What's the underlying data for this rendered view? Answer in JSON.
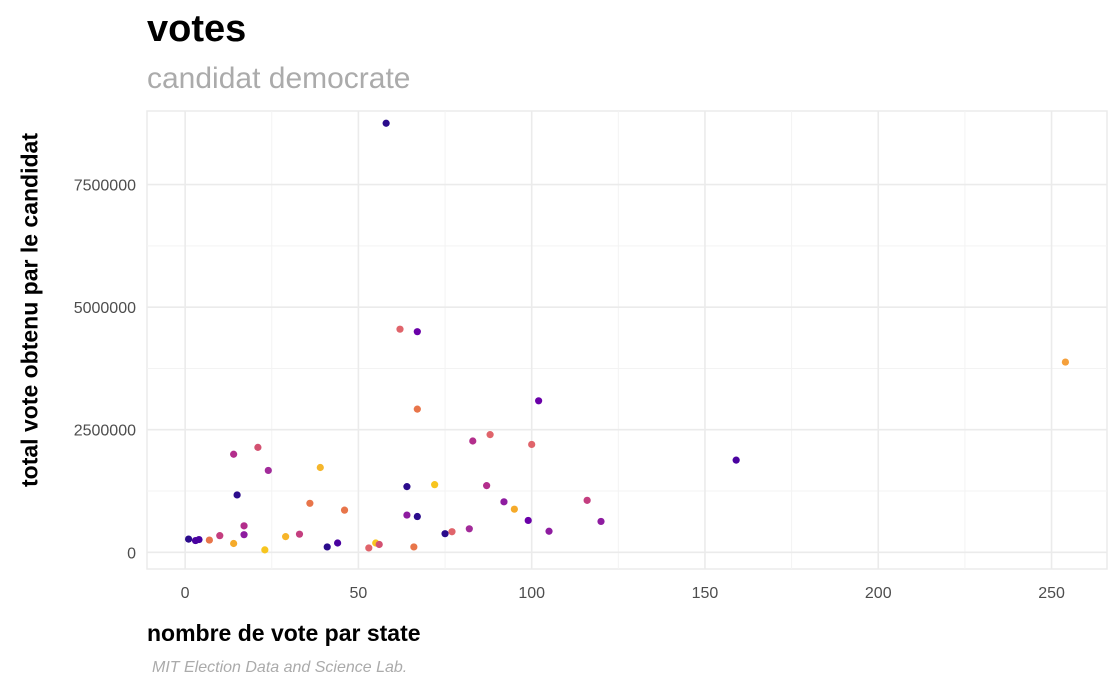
{
  "chart_data": {
    "type": "scatter",
    "title": "votes",
    "subtitle": "candidat democrate",
    "xlabel": "nombre de vote par state",
    "ylabel": "total vote obtenu par le candidat",
    "caption": "MIT Election Data and Science Lab.",
    "xlim": [
      -11,
      266
    ],
    "ylim": [
      -340000,
      9000000
    ],
    "xticks": [
      0,
      50,
      100,
      150,
      200,
      250
    ],
    "yticks": [
      0,
      2500000,
      5000000,
      7500000
    ],
    "grid": true,
    "legend": "none",
    "points": [
      {
        "x": 1,
        "y": 270000,
        "color": "#2b0b8c"
      },
      {
        "x": 3,
        "y": 240000,
        "color": "#4a02a0"
      },
      {
        "x": 4,
        "y": 260000,
        "color": "#4a02a0"
      },
      {
        "x": 7,
        "y": 250000,
        "color": "#e8754a"
      },
      {
        "x": 10,
        "y": 340000,
        "color": "#c43e7f"
      },
      {
        "x": 14,
        "y": 2000000,
        "color": "#b32e8c"
      },
      {
        "x": 14,
        "y": 180000,
        "color": "#f5aa2a"
      },
      {
        "x": 15,
        "y": 1170000,
        "color": "#2b0b8c"
      },
      {
        "x": 17,
        "y": 540000,
        "color": "#b32e8c"
      },
      {
        "x": 17,
        "y": 360000,
        "color": "#8e1ca0"
      },
      {
        "x": 21,
        "y": 2140000,
        "color": "#d35171"
      },
      {
        "x": 23,
        "y": 50000,
        "color": "#f7c51f"
      },
      {
        "x": 24,
        "y": 1670000,
        "color": "#a22b9a"
      },
      {
        "x": 29,
        "y": 320000,
        "color": "#f7b52a"
      },
      {
        "x": 33,
        "y": 370000,
        "color": "#c43e7f"
      },
      {
        "x": 36,
        "y": 1000000,
        "color": "#e8754a"
      },
      {
        "x": 39,
        "y": 1730000,
        "color": "#f5b62c"
      },
      {
        "x": 41,
        "y": 110000,
        "color": "#2b0b8c"
      },
      {
        "x": 44,
        "y": 190000,
        "color": "#4a02a0"
      },
      {
        "x": 46,
        "y": 860000,
        "color": "#e8754a"
      },
      {
        "x": 53,
        "y": 90000,
        "color": "#e0646b"
      },
      {
        "x": 55,
        "y": 190000,
        "color": "#f7c51f"
      },
      {
        "x": 56,
        "y": 160000,
        "color": "#d35171"
      },
      {
        "x": 58,
        "y": 8750000,
        "color": "#2b0b8c"
      },
      {
        "x": 62,
        "y": 4550000,
        "color": "#e0646b"
      },
      {
        "x": 64,
        "y": 1340000,
        "color": "#2b0b8c"
      },
      {
        "x": 64,
        "y": 760000,
        "color": "#8e1ca0"
      },
      {
        "x": 66,
        "y": 110000,
        "color": "#e8754a"
      },
      {
        "x": 67,
        "y": 4500000,
        "color": "#6a00a8"
      },
      {
        "x": 67,
        "y": 2920000,
        "color": "#e8754a"
      },
      {
        "x": 67,
        "y": 730000,
        "color": "#2b0b8c"
      },
      {
        "x": 72,
        "y": 1380000,
        "color": "#f7c51f"
      },
      {
        "x": 75,
        "y": 380000,
        "color": "#2b0b8c"
      },
      {
        "x": 77,
        "y": 420000,
        "color": "#e0646b"
      },
      {
        "x": 82,
        "y": 480000,
        "color": "#a22b9a"
      },
      {
        "x": 83,
        "y": 2270000,
        "color": "#b32e8c"
      },
      {
        "x": 87,
        "y": 1360000,
        "color": "#b32e8c"
      },
      {
        "x": 88,
        "y": 2400000,
        "color": "#e0646b"
      },
      {
        "x": 92,
        "y": 1030000,
        "color": "#8e1ca0"
      },
      {
        "x": 95,
        "y": 880000,
        "color": "#f5aa2a"
      },
      {
        "x": 99,
        "y": 650000,
        "color": "#6a00a8"
      },
      {
        "x": 100,
        "y": 2200000,
        "color": "#e0646b"
      },
      {
        "x": 102,
        "y": 3090000,
        "color": "#6a00a8"
      },
      {
        "x": 105,
        "y": 430000,
        "color": "#8e1ca0"
      },
      {
        "x": 116,
        "y": 1060000,
        "color": "#c43e7f"
      },
      {
        "x": 120,
        "y": 630000,
        "color": "#8e1ca0"
      },
      {
        "x": 159,
        "y": 1880000,
        "color": "#4a02a0"
      },
      {
        "x": 254,
        "y": 3880000,
        "color": "#f5a03b"
      }
    ]
  }
}
